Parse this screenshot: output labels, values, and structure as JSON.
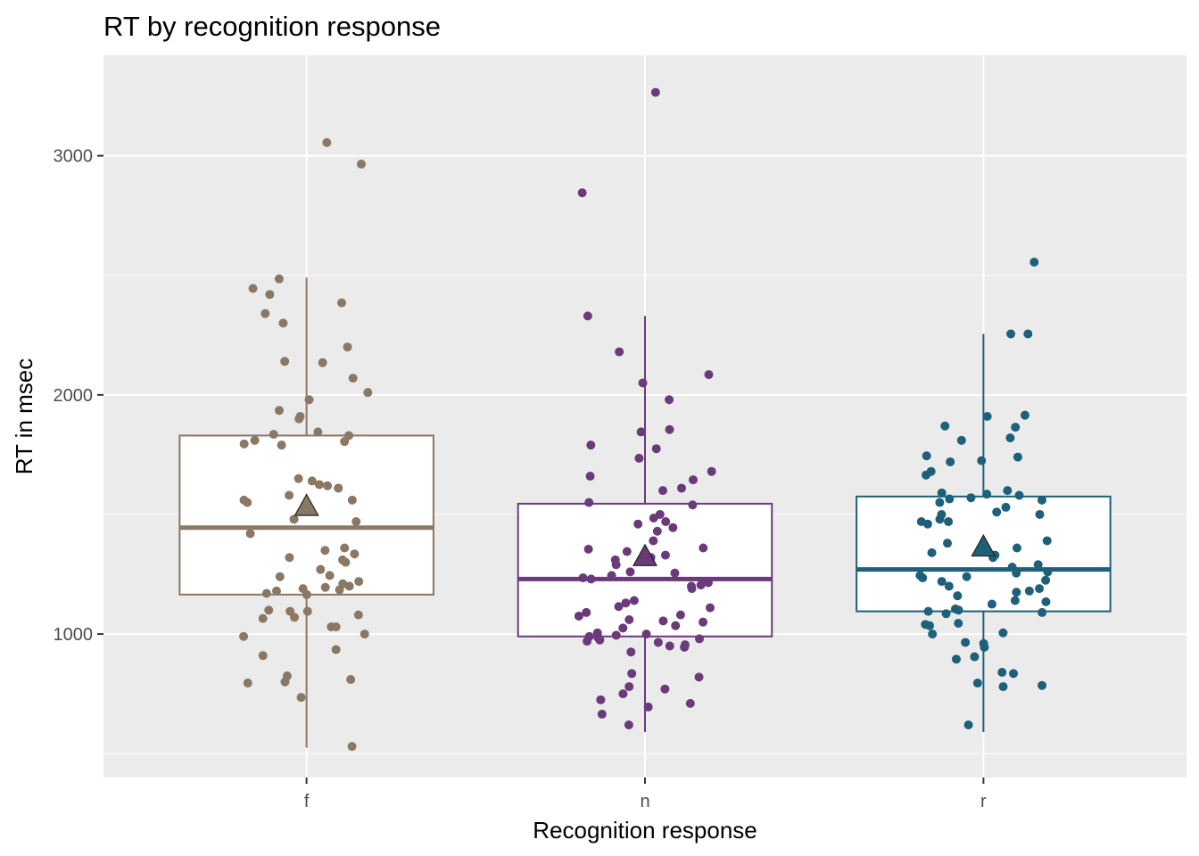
{
  "chart_data": {
    "type": "boxplot",
    "title": "RT by recognition response",
    "xlabel": "Recognition response",
    "ylabel": "RT in msec",
    "categories": [
      "f",
      "n",
      "r"
    ],
    "y_ticks": [
      1000,
      2000,
      3000
    ],
    "ylim": [
      400,
      3420
    ],
    "grid": true,
    "legend": "none",
    "colors": {
      "f": "#8a7764",
      "n": "#6b3a7a",
      "r": "#1e6079",
      "panel": "#ebebeb",
      "grid": "#ffffff"
    },
    "boxes": [
      {
        "category": "f",
        "q1": 1165,
        "median": 1445,
        "q3": 1830,
        "whisker_low": 525,
        "whisker_high": 2490,
        "mean": 1535
      },
      {
        "category": "n",
        "q1": 990,
        "median": 1230,
        "q3": 1545,
        "whisker_low": 590,
        "whisker_high": 2330,
        "mean": 1325
      },
      {
        "category": "r",
        "q1": 1095,
        "median": 1270,
        "q3": 1575,
        "whisker_low": 590,
        "whisker_high": 2255,
        "mean": 1365
      }
    ],
    "points": {
      "f": [
        3055,
        2965,
        2485,
        2445,
        2420,
        2385,
        2340,
        2300,
        2200,
        2140,
        2135,
        2070,
        2010,
        1980,
        1935,
        1910,
        1900,
        1845,
        1835,
        1830,
        1810,
        1805,
        1795,
        1790,
        1650,
        1640,
        1625,
        1620,
        1610,
        1580,
        1560,
        1560,
        1550,
        1480,
        1470,
        1420,
        1360,
        1350,
        1335,
        1320,
        1310,
        1300,
        1270,
        1245,
        1240,
        1220,
        1210,
        1200,
        1195,
        1190,
        1185,
        1180,
        1170,
        1165,
        1100,
        1095,
        1095,
        1080,
        1070,
        1065,
        1030,
        1030,
        1000,
        990,
        935,
        910,
        825,
        810,
        800,
        795,
        735,
        530
      ],
      "n": [
        3265,
        2845,
        2330,
        2180,
        2085,
        2050,
        1980,
        1855,
        1845,
        1790,
        1775,
        1735,
        1680,
        1660,
        1645,
        1610,
        1600,
        1550,
        1540,
        1500,
        1485,
        1470,
        1460,
        1445,
        1430,
        1390,
        1360,
        1355,
        1345,
        1330,
        1320,
        1310,
        1290,
        1260,
        1255,
        1245,
        1235,
        1230,
        1215,
        1205,
        1200,
        1190,
        1140,
        1130,
        1115,
        1110,
        1090,
        1080,
        1075,
        1060,
        1055,
        1050,
        1035,
        1025,
        1005,
        1000,
        995,
        990,
        985,
        980,
        975,
        970,
        965,
        955,
        950,
        945,
        925,
        835,
        820,
        780,
        770,
        750,
        725,
        710,
        695,
        665,
        620
      ],
      "r": [
        2555,
        2255,
        2255,
        1915,
        1910,
        1870,
        1865,
        1820,
        1810,
        1745,
        1740,
        1725,
        1720,
        1680,
        1665,
        1600,
        1590,
        1585,
        1580,
        1570,
        1565,
        1560,
        1550,
        1530,
        1510,
        1500,
        1500,
        1480,
        1470,
        1470,
        1460,
        1390,
        1380,
        1360,
        1340,
        1330,
        1320,
        1290,
        1280,
        1260,
        1255,
        1245,
        1240,
        1235,
        1225,
        1220,
        1200,
        1190,
        1180,
        1175,
        1160,
        1140,
        1135,
        1125,
        1105,
        1100,
        1095,
        1090,
        1085,
        1045,
        1040,
        1035,
        1005,
        1000,
        965,
        960,
        945,
        905,
        895,
        840,
        835,
        795,
        785,
        780,
        620
      ]
    }
  }
}
